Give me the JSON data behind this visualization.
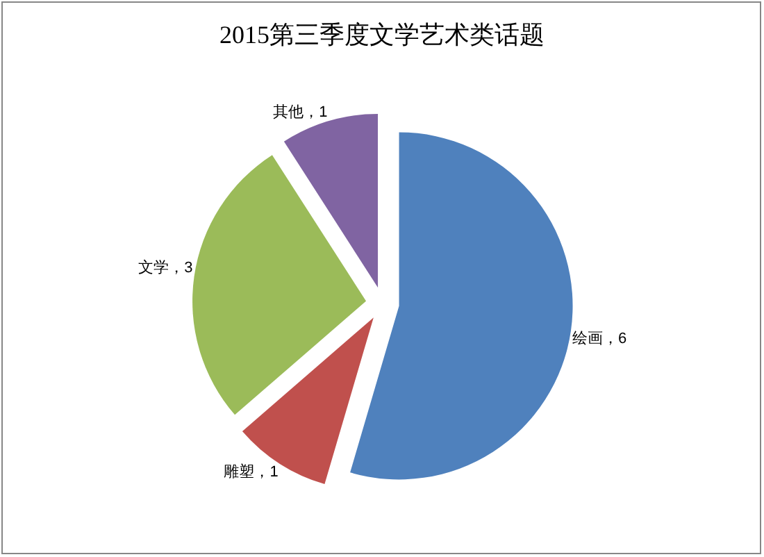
{
  "chart_data": {
    "type": "pie",
    "title": "2015第三季度文学艺术类话题",
    "categories": [
      "绘画",
      "雕塑",
      "文学",
      "其他"
    ],
    "values": [
      6,
      1,
      3,
      1
    ],
    "value_labels": [
      "，6",
      "，1",
      "，3",
      "，1"
    ],
    "colors": [
      "#4f81bd",
      "#c0504d",
      "#9bbb59",
      "#8064a2"
    ]
  }
}
